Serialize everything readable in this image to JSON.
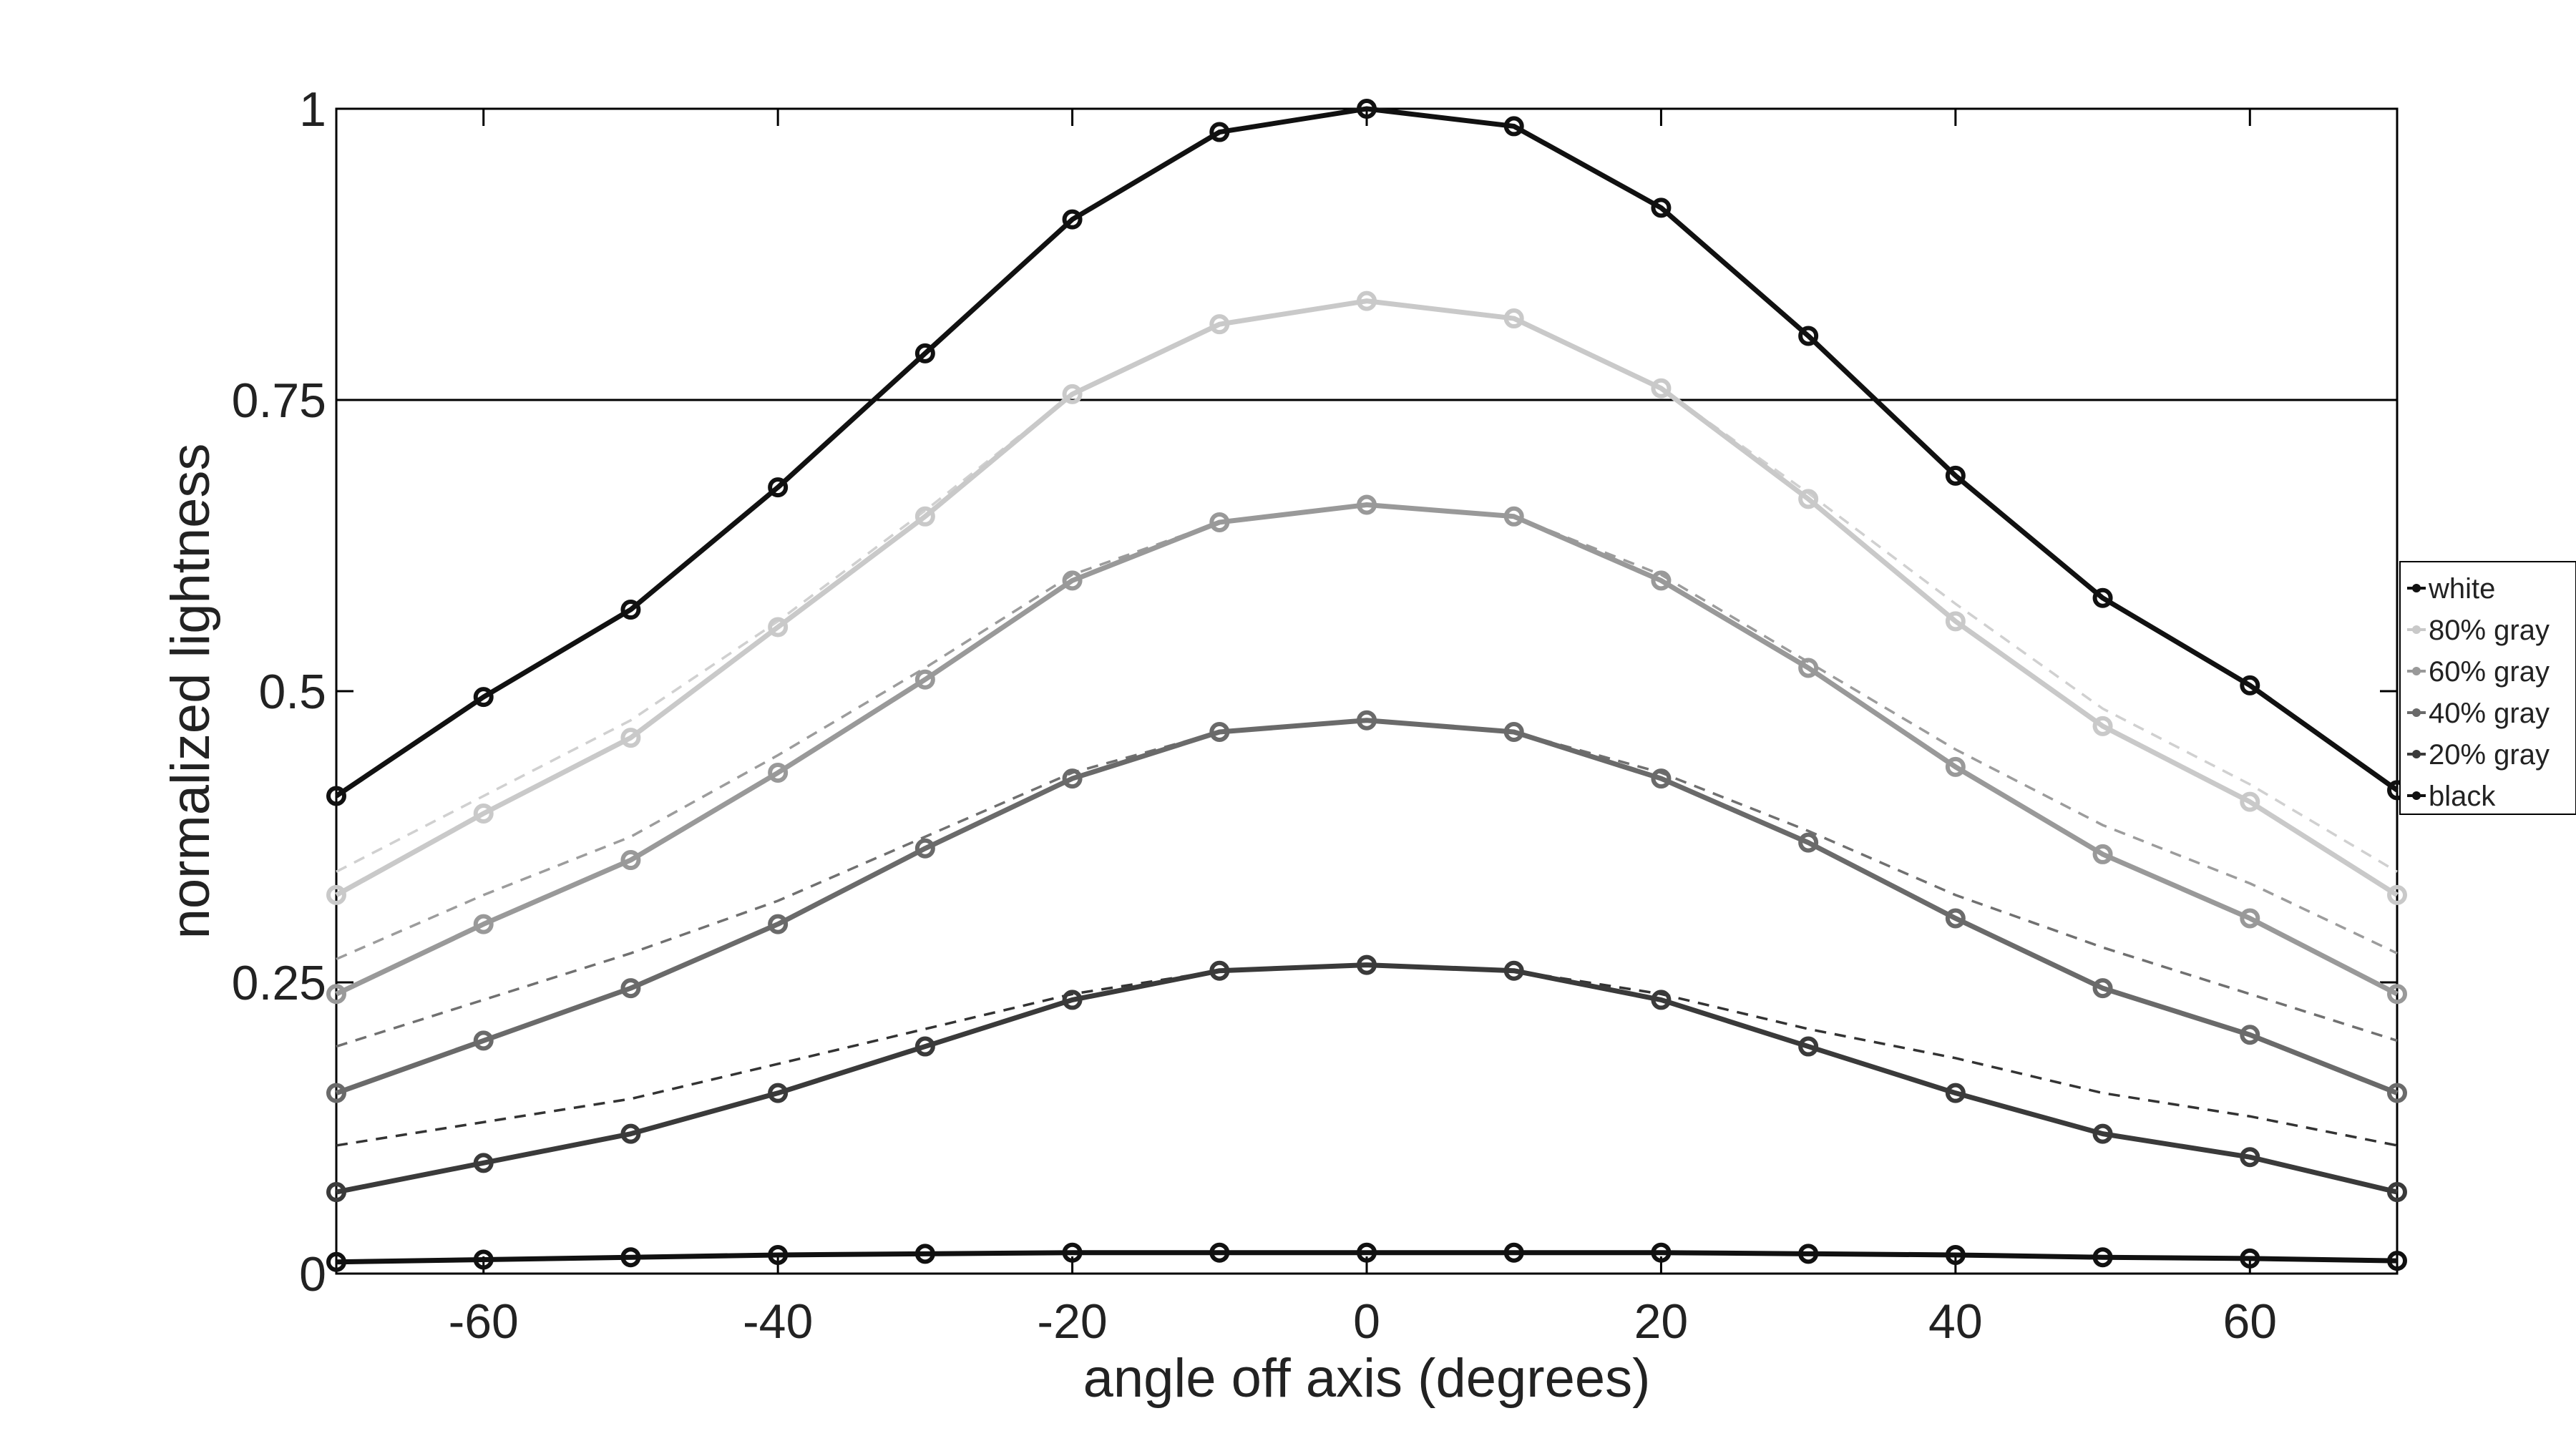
{
  "chart_data": {
    "type": "line",
    "xlabel": "angle off axis (degrees)",
    "ylabel": "normalized lightness",
    "xlim": [
      -70,
      70
    ],
    "ylim": [
      0,
      1
    ],
    "xticks": [
      "-60",
      "-40",
      "-20",
      "0",
      "20",
      "40",
      "60"
    ],
    "xtick_values": [
      -60,
      -40,
      -20,
      0,
      20,
      40,
      60
    ],
    "yticks": [
      "0",
      "0.25",
      "0.5",
      "0.75",
      "1"
    ],
    "ytick_values": [
      0,
      0.25,
      0.5,
      0.75,
      1
    ],
    "reference_line": {
      "y": 0.75
    },
    "x": [
      -70,
      -60,
      -50,
      -40,
      -30,
      -20,
      -10,
      0,
      10,
      20,
      30,
      40,
      50,
      60,
      70
    ],
    "series": [
      {
        "name": "white",
        "color": "#111111",
        "marker": "circle",
        "values": [
          0.41,
          0.495,
          0.57,
          0.675,
          0.79,
          0.905,
          0.98,
          1.0,
          0.985,
          0.915,
          0.805,
          0.685,
          0.58,
          0.505,
          0.415
        ]
      },
      {
        "name": "80% gray",
        "color": "#c9c9c9",
        "marker": "circle",
        "values": [
          0.325,
          0.395,
          0.46,
          0.555,
          0.65,
          0.755,
          0.815,
          0.835,
          0.82,
          0.76,
          0.665,
          0.56,
          0.47,
          0.405,
          0.325
        ]
      },
      {
        "name": "60% gray",
        "color": "#999999",
        "marker": "circle",
        "values": [
          0.24,
          0.3,
          0.355,
          0.43,
          0.51,
          0.595,
          0.645,
          0.66,
          0.65,
          0.595,
          0.52,
          0.435,
          0.36,
          0.305,
          0.24
        ]
      },
      {
        "name": "40% gray",
        "color": "#6a6a6a",
        "marker": "circle",
        "values": [
          0.155,
          0.2,
          0.245,
          0.3,
          0.365,
          0.425,
          0.465,
          0.475,
          0.465,
          0.425,
          0.37,
          0.305,
          0.245,
          0.205,
          0.155
        ]
      },
      {
        "name": "20% gray",
        "color": "#3a3a3a",
        "marker": "circle",
        "values": [
          0.07,
          0.095,
          0.12,
          0.155,
          0.195,
          0.235,
          0.26,
          0.265,
          0.26,
          0.235,
          0.195,
          0.155,
          0.12,
          0.1,
          0.07
        ]
      },
      {
        "name": "black",
        "color": "#111111",
        "marker": "circle",
        "values": [
          0.01,
          0.012,
          0.014,
          0.016,
          0.017,
          0.018,
          0.018,
          0.018,
          0.018,
          0.018,
          0.017,
          0.016,
          0.014,
          0.013,
          0.011
        ]
      }
    ],
    "reference_curves": [
      {
        "color": "#d0d0d0",
        "style": "dashed",
        "values": [
          0.345,
          0.41,
          0.475,
          0.56,
          0.655,
          0.755,
          0.815,
          0.835,
          0.82,
          0.76,
          0.67,
          0.575,
          0.485,
          0.42,
          0.345
        ]
      },
      {
        "color": "#9c9c9c",
        "style": "dashed",
        "values": [
          0.27,
          0.325,
          0.375,
          0.445,
          0.52,
          0.6,
          0.645,
          0.66,
          0.65,
          0.6,
          0.525,
          0.45,
          0.385,
          0.335,
          0.275
        ]
      },
      {
        "color": "#707070",
        "style": "dashed",
        "values": [
          0.195,
          0.235,
          0.275,
          0.32,
          0.375,
          0.43,
          0.465,
          0.475,
          0.465,
          0.43,
          0.38,
          0.325,
          0.28,
          0.24,
          0.2
        ]
      },
      {
        "color": "#333333",
        "style": "dashed",
        "values": [
          0.11,
          0.13,
          0.15,
          0.18,
          0.21,
          0.24,
          0.26,
          0.265,
          0.26,
          0.24,
          0.21,
          0.185,
          0.155,
          0.135,
          0.11
        ]
      }
    ],
    "legend": {
      "position": "right",
      "entries": [
        "white",
        "80% gray",
        "60% gray",
        "40% gray",
        "20% gray",
        "black"
      ]
    },
    "grid": false
  }
}
